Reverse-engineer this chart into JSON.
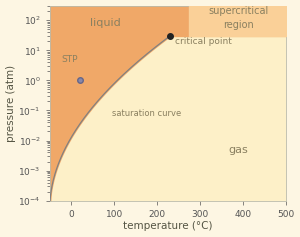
{
  "title": "",
  "xlabel": "temperature (°C)",
  "ylabel": "pressure (atm)",
  "xlim": [
    -50,
    500
  ],
  "ylim_lo": 0.0001,
  "ylim_hi": 300,
  "bg_color": "#fdf6e3",
  "liquid_color": "#f0a868",
  "supercritical_color": "#fad098",
  "gas_color": "#fdf0c8",
  "curve_color": "#808080",
  "critical_T": 230,
  "critical_P": 30,
  "stp_T": 20,
  "stp_P": 1.0,
  "supercrit_boundary_T": 275,
  "label_liquid": "liquid",
  "label_gas": "gas",
  "label_supercritical": "supercritical\nregion",
  "label_saturation": "saturation curve",
  "label_stp": "STP",
  "label_critical": "critical point",
  "text_color": "#8a8060"
}
